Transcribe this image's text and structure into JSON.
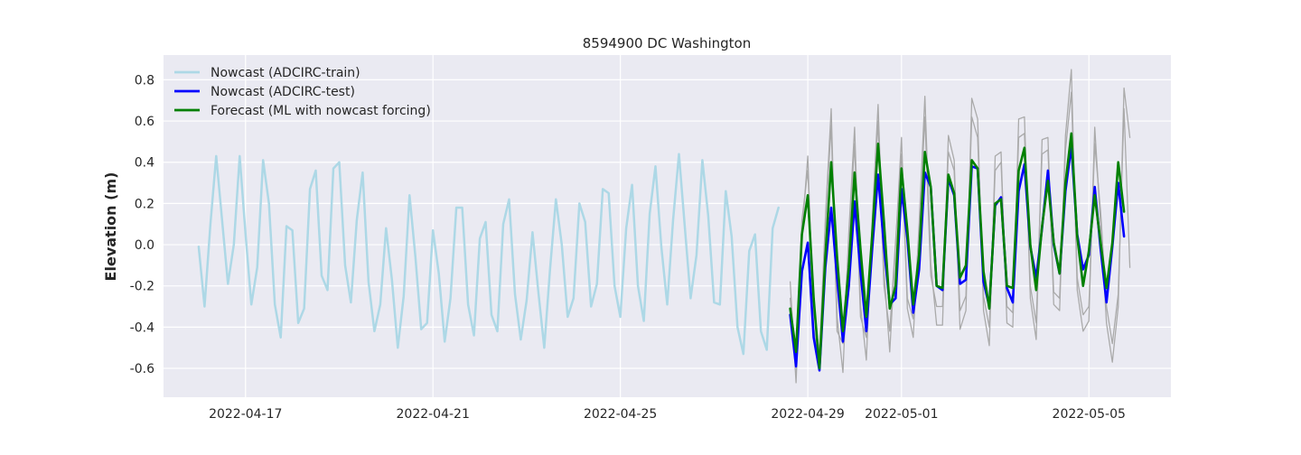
{
  "chart_data": {
    "type": "line",
    "title": "8594900 DC Washington",
    "xlabel": "",
    "ylabel": "Elevation (m)",
    "ylim": [
      -0.74,
      0.92
    ],
    "xlim": [
      "2022-04-15T06:00",
      "2022-05-06T18:00"
    ],
    "x_ticks": [
      "2022-04-17",
      "2022-04-21",
      "2022-04-25",
      "2022-04-29",
      "2022-05-01",
      "2022-05-05"
    ],
    "y_ticks": [
      -0.6,
      -0.4,
      -0.2,
      0.0,
      0.2,
      0.4,
      0.6,
      0.8
    ],
    "grid": true,
    "legend_position": "top-left",
    "legend": [
      {
        "label": "Nowcast (ADCIRC-train)",
        "color": "#add8e6"
      },
      {
        "label": "Nowcast (ADCIRC-test)",
        "color": "#0000ff"
      },
      {
        "label": "Forecast (ML with nowcast forcing)",
        "color": "#008000"
      }
    ],
    "series": [
      {
        "name": "Nowcast (ADCIRC-train)",
        "color": "#add8e6",
        "start": "2022-04-16T00:00",
        "step_hours": 3,
        "values": [
          -0.01,
          -0.3,
          0.1,
          0.43,
          0.12,
          -0.19,
          0.0,
          0.43,
          0.05,
          -0.29,
          -0.11,
          0.41,
          0.2,
          -0.29,
          -0.45,
          0.09,
          0.07,
          -0.38,
          -0.31,
          0.27,
          0.36,
          -0.15,
          -0.22,
          0.37,
          0.4,
          -0.1,
          -0.28,
          0.12,
          0.35,
          -0.18,
          -0.42,
          -0.29,
          0.08,
          -0.17,
          -0.5,
          -0.25,
          0.24,
          -0.06,
          -0.41,
          -0.38,
          0.07,
          -0.14,
          -0.47,
          -0.26,
          0.18,
          0.18,
          -0.29,
          -0.44,
          0.03,
          0.11,
          -0.34,
          -0.42,
          0.1,
          0.22,
          -0.24,
          -0.46,
          -0.27,
          0.06,
          -0.23,
          -0.5,
          -0.12,
          0.22,
          0.0,
          -0.35,
          -0.26,
          0.2,
          0.11,
          -0.3,
          -0.19,
          0.27,
          0.25,
          -0.2,
          -0.35,
          0.08,
          0.29,
          -0.2,
          -0.37,
          0.15,
          0.38,
          -0.01,
          -0.29,
          0.12,
          0.44,
          0.09,
          -0.26,
          -0.05,
          0.41,
          0.14,
          -0.28,
          -0.29,
          0.26,
          0.04,
          -0.4,
          -0.53,
          -0.03,
          0.05,
          -0.42,
          -0.51,
          0.08,
          0.18
        ]
      },
      {
        "name": "",
        "color": "#aaaaaa",
        "start": "2022-04-28T15:00",
        "step_hours": 3,
        "values": [
          -0.18,
          -0.67,
          0.05,
          0.43,
          -0.4,
          -0.6,
          0.12,
          0.66,
          -0.35,
          -0.62,
          0.06,
          0.57,
          -0.29,
          -0.56,
          0.12,
          0.68,
          -0.13,
          -0.52,
          0.0,
          0.52,
          -0.31,
          -0.45,
          0.1,
          0.72,
          -0.09,
          -0.39,
          -0.39,
          0.53,
          0.41,
          -0.41,
          -0.32,
          0.71,
          0.61,
          -0.32,
          -0.49,
          0.43,
          0.45,
          -0.38,
          -0.4,
          0.61,
          0.62,
          -0.26,
          -0.46,
          0.51,
          0.52,
          -0.29,
          -0.32,
          0.53,
          0.85,
          -0.22,
          -0.42,
          -0.37,
          0.57,
          0.1,
          -0.38,
          -0.57,
          -0.3,
          0.76,
          0.52
        ]
      },
      {
        "name": "",
        "color": "#aaaaaa",
        "start": "2022-04-28T15:00",
        "step_hours": 3,
        "values": [
          -0.26,
          -0.58,
          0.12,
          0.36,
          -0.32,
          -0.52,
          0.1,
          0.58,
          -0.42,
          -0.48,
          0.02,
          0.49,
          -0.35,
          -0.45,
          0.08,
          0.6,
          -0.2,
          -0.42,
          0.02,
          0.44,
          -0.26,
          -0.36,
          0.06,
          0.62,
          -0.15,
          -0.3,
          -0.3,
          0.45,
          0.36,
          -0.32,
          -0.25,
          0.62,
          0.52,
          -0.25,
          -0.4,
          0.36,
          0.4,
          -0.3,
          -0.33,
          0.52,
          0.54,
          -0.2,
          -0.38,
          0.44,
          0.46,
          -0.23,
          -0.26,
          0.46,
          0.74,
          -0.16,
          -0.34,
          -0.3,
          0.49,
          0.16,
          -0.3,
          -0.48,
          -0.24,
          0.66,
          -0.11
        ]
      },
      {
        "name": "Nowcast (ADCIRC-test)",
        "color": "#0000ff",
        "start": "2022-04-28T15:00",
        "step_hours": 3,
        "values": [
          -0.34,
          -0.59,
          -0.13,
          0.01,
          -0.45,
          -0.61,
          -0.11,
          0.18,
          -0.16,
          -0.47,
          -0.2,
          0.21,
          -0.13,
          -0.42,
          -0.02,
          0.34,
          -0.01,
          -0.29,
          -0.26,
          0.27,
          0.03,
          -0.33,
          -0.12,
          0.35,
          0.28,
          -0.2,
          -0.22,
          0.32,
          0.24,
          -0.19,
          -0.17,
          0.38,
          0.37,
          -0.18,
          -0.3,
          0.19,
          0.23,
          -0.21,
          -0.28,
          0.26,
          0.39,
          -0.01,
          -0.16,
          0.08,
          0.36,
          0.0,
          -0.14,
          0.26,
          0.48,
          0.05,
          -0.12,
          -0.05,
          0.28,
          -0.02,
          -0.28,
          -0.01,
          0.3,
          0.04
        ]
      },
      {
        "name": "Forecast (ML with nowcast forcing)",
        "color": "#008000",
        "start": "2022-04-28T15:00",
        "step_hours": 3,
        "values": [
          -0.31,
          -0.52,
          0.05,
          0.24,
          -0.26,
          -0.6,
          -0.06,
          0.4,
          -0.06,
          -0.42,
          -0.11,
          0.35,
          -0.02,
          -0.35,
          0.05,
          0.49,
          0.11,
          -0.31,
          -0.2,
          0.37,
          0.07,
          -0.29,
          -0.05,
          0.45,
          0.28,
          -0.2,
          -0.21,
          0.34,
          0.25,
          -0.16,
          -0.1,
          0.41,
          0.37,
          -0.13,
          -0.31,
          0.2,
          0.22,
          -0.2,
          -0.21,
          0.36,
          0.47,
          0.0,
          -0.22,
          0.09,
          0.31,
          0.01,
          -0.14,
          0.3,
          0.54,
          0.04,
          -0.2,
          -0.03,
          0.24,
          0.01,
          -0.21,
          0.01,
          0.4,
          0.16
        ]
      }
    ]
  }
}
